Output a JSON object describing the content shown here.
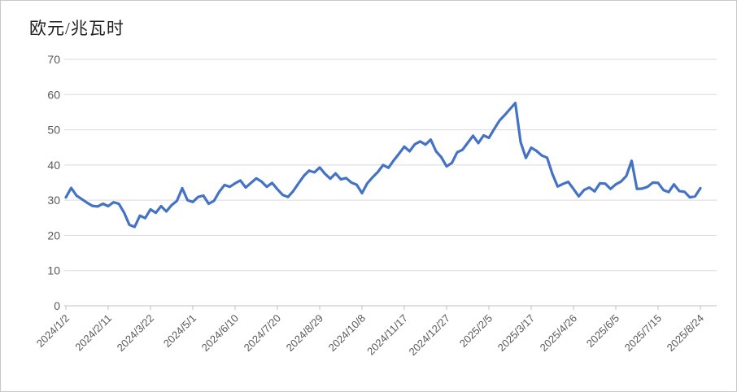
{
  "chart_data": {
    "type": "line",
    "title": "欧元/兆瓦时",
    "xlabel": "",
    "ylabel": "欧元/兆瓦时",
    "ylim": [
      0,
      70
    ],
    "y_ticks": [
      0,
      10,
      20,
      30,
      40,
      50,
      60,
      70
    ],
    "grid": "horizontal-only",
    "legend": "none",
    "x_labels": [
      "2024/1/2",
      "2024/2/11",
      "2024/3/22",
      "2024/5/1",
      "2024/6/10",
      "2024/7/20",
      "2024/8/29",
      "2024/10/8",
      "2024/11/17",
      "2024/12/27",
      "2025/2/5",
      "2025/3/17",
      "2025/4/26",
      "2025/6/5",
      "2025/7/15",
      "2025/8/24"
    ],
    "x_label_rotation_deg": -45,
    "sampling_note": "values are evenly spaced along the x-axis; every 8th value falls on an x_label tick",
    "series": [
      {
        "name": "",
        "color": "#4472C4",
        "values": [
          30.8,
          33.5,
          31.3,
          30.3,
          29.3,
          28.4,
          28.2,
          29.0,
          28.3,
          29.4,
          29.0,
          26.5,
          23.0,
          22.4,
          25.6,
          24.9,
          27.4,
          26.4,
          28.3,
          26.8,
          28.6,
          29.8,
          33.4,
          30.0,
          29.5,
          30.9,
          31.3,
          29.0,
          29.8,
          32.4,
          34.3,
          33.8,
          34.8,
          35.6,
          33.6,
          34.9,
          36.2,
          35.3,
          33.8,
          34.9,
          33.1,
          31.5,
          30.9,
          32.6,
          34.8,
          36.9,
          38.4,
          37.9,
          39.3,
          37.5,
          36.1,
          37.6,
          35.9,
          36.3,
          35.0,
          34.4,
          32.0,
          34.8,
          36.5,
          38.0,
          40.0,
          39.2,
          41.3,
          43.2,
          45.2,
          43.9,
          45.9,
          46.7,
          45.8,
          47.2,
          43.9,
          42.2,
          39.6,
          40.6,
          43.6,
          44.3,
          46.3,
          48.3,
          46.2,
          48.4,
          47.7,
          50.2,
          52.6,
          54.2,
          55.9,
          57.6,
          46.5,
          42.0,
          44.9,
          44.0,
          42.7,
          42.1,
          37.5,
          33.9,
          34.6,
          35.2,
          33.2,
          31.1,
          32.9,
          33.6,
          32.5,
          34.8,
          34.7,
          33.2,
          34.5,
          35.3,
          36.9,
          41.2,
          33.2,
          33.3,
          33.8,
          35.0,
          34.9,
          32.9,
          32.3,
          34.5,
          32.6,
          32.4,
          30.8,
          31.1,
          33.4
        ]
      }
    ],
    "colors": {
      "line": "#4472C4",
      "gridline": "#D9D9D9",
      "axis": "#BFBFBF",
      "tick_labels": "#595959",
      "title": "#1F1F1F",
      "background": "#FFFFFF"
    }
  }
}
